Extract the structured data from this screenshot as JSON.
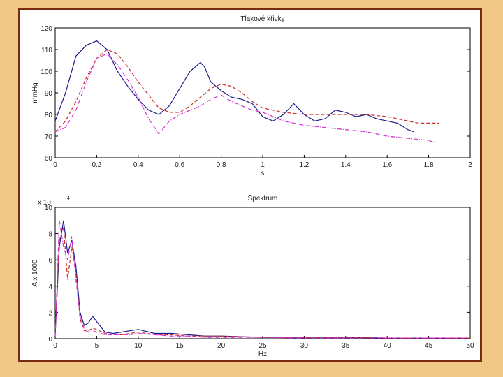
{
  "colors": {
    "frame": "#7a2a10",
    "background": "#f0c987",
    "blue": "#1a1a8c",
    "red": "#cc2a2a",
    "magenta": "#d42ad4"
  },
  "chart_data": [
    {
      "type": "line",
      "title": "Tlakové křivky",
      "xlabel": "s",
      "ylabel": "mmHg",
      "xlim": [
        0,
        2
      ],
      "ylim": [
        60,
        120
      ],
      "xticks": [
        0,
        0.2,
        0.4,
        0.6,
        0.8,
        1,
        1.2,
        1.4,
        1.6,
        1.8,
        2
      ],
      "xtick_labels": [
        "0",
        "0.2",
        "0.4",
        "0.6",
        "0.8",
        "1",
        "1.2",
        "1.4",
        "1.6",
        "1.8",
        "2"
      ],
      "yticks": [
        60,
        70,
        80,
        90,
        100,
        110,
        120
      ],
      "ytick_labels": [
        "60",
        "70",
        "80",
        "90",
        "100",
        "110",
        "120"
      ],
      "series": [
        {
          "name": "blue",
          "color": "#1a1a8c",
          "x": [
            0,
            0.05,
            0.1,
            0.15,
            0.2,
            0.25,
            0.3,
            0.35,
            0.4,
            0.45,
            0.5,
            0.55,
            0.6,
            0.65,
            0.7,
            0.72,
            0.75,
            0.8,
            0.85,
            0.9,
            0.95,
            1,
            1.05,
            1.1,
            1.15,
            1.2,
            1.25,
            1.3,
            1.35,
            1.4,
            1.45,
            1.5,
            1.55,
            1.6,
            1.65,
            1.7,
            1.73
          ],
          "y": [
            77,
            90,
            107,
            112,
            114,
            110,
            100,
            93,
            87,
            82,
            80,
            84,
            92,
            100,
            104,
            102,
            95,
            91,
            88,
            87,
            85,
            79,
            77,
            80,
            85,
            80,
            77,
            78,
            82,
            81,
            79,
            80,
            78,
            77,
            76,
            73,
            72
          ]
        },
        {
          "name": "red",
          "color": "#cc2a2a",
          "x": [
            0,
            0.05,
            0.1,
            0.15,
            0.2,
            0.25,
            0.3,
            0.35,
            0.4,
            0.45,
            0.5,
            0.55,
            0.6,
            0.65,
            0.7,
            0.75,
            0.8,
            0.85,
            0.9,
            0.95,
            1,
            1.1,
            1.2,
            1.3,
            1.4,
            1.5,
            1.6,
            1.7,
            1.75,
            1.8,
            1.85
          ],
          "y": [
            72,
            77,
            86,
            97,
            106,
            110,
            108,
            102,
            95,
            89,
            83,
            81,
            81,
            84,
            88,
            92,
            94,
            93,
            90,
            86,
            83,
            81,
            80,
            80,
            80,
            80,
            79,
            77,
            76,
            76,
            76
          ]
        },
        {
          "name": "magenta",
          "color": "#d42ad4",
          "x": [
            0,
            0.05,
            0.1,
            0.15,
            0.2,
            0.25,
            0.3,
            0.35,
            0.4,
            0.45,
            0.5,
            0.55,
            0.6,
            0.65,
            0.7,
            0.75,
            0.8,
            0.85,
            0.9,
            0.95,
            1,
            1.05,
            1.1,
            1.15,
            1.2,
            1.3,
            1.4,
            1.5,
            1.6,
            1.7,
            1.8,
            1.83
          ],
          "y": [
            72,
            74,
            82,
            95,
            106,
            108,
            103,
            96,
            88,
            78,
            71,
            77,
            80,
            82,
            84,
            87,
            89,
            86,
            84,
            82,
            81,
            79,
            77,
            76,
            75,
            74,
            73,
            72,
            70,
            69,
            68,
            67
          ]
        }
      ]
    },
    {
      "type": "line",
      "title": "Spektrum",
      "xlabel": "Hz",
      "ylabel": "A x 1000",
      "multiplier": "x 10",
      "exponent": "4",
      "xlim": [
        0,
        50
      ],
      "ylim": [
        0,
        10
      ],
      "xticks": [
        0,
        5,
        10,
        15,
        20,
        25,
        30,
        35,
        40,
        45,
        50
      ],
      "xtick_labels": [
        "0",
        "5",
        "10",
        "15",
        "20",
        "25",
        "30",
        "35",
        "40",
        "45",
        "50"
      ],
      "yticks": [
        0,
        2,
        4,
        6,
        8,
        10
      ],
      "ytick_labels": [
        "0",
        "2",
        "4",
        "6",
        "8",
        "10"
      ],
      "series": [
        {
          "name": "blue",
          "color": "#1a1a8c",
          "x": [
            0,
            0.5,
            1,
            1.5,
            2,
            2.5,
            3,
            3.5,
            4,
            4.5,
            5,
            6,
            7,
            8,
            9,
            10,
            12,
            14,
            16,
            18,
            20,
            25,
            30,
            35,
            40,
            45,
            50
          ],
          "y": [
            0.3,
            7,
            9,
            6.5,
            7.5,
            5.5,
            2,
            1,
            1.2,
            1.7,
            1.3,
            0.5,
            0.4,
            0.5,
            0.6,
            0.7,
            0.4,
            0.4,
            0.3,
            0.2,
            0.2,
            0.1,
            0.1,
            0.1,
            0.05,
            0.05,
            0.05
          ]
        },
        {
          "name": "red",
          "color": "#cc2a2a",
          "x": [
            0,
            0.5,
            1,
            1.5,
            2,
            2.5,
            3,
            3.5,
            4,
            4.5,
            5,
            6,
            7,
            8,
            9,
            10,
            12,
            14,
            16,
            18,
            20,
            25,
            30,
            35,
            40,
            45,
            50
          ],
          "y": [
            0.2,
            7.5,
            8.5,
            4.5,
            7,
            5,
            1.5,
            0.6,
            0.6,
            0.8,
            0.7,
            0.4,
            0.3,
            0.3,
            0.4,
            0.5,
            0.3,
            0.3,
            0.2,
            0.2,
            0.2,
            0.1,
            0.1,
            0.1,
            0.05,
            0.05,
            0.05
          ]
        },
        {
          "name": "magenta",
          "color": "#d42ad4",
          "x": [
            0,
            0.5,
            1,
            1.5,
            2,
            2.5,
            3,
            3.5,
            4,
            4.5,
            5,
            6,
            7,
            8,
            9,
            10,
            12,
            14,
            16,
            18,
            20,
            25,
            30,
            35,
            40,
            45,
            50
          ],
          "y": [
            0.2,
            9,
            7,
            6,
            7.8,
            4.5,
            1.8,
            0.7,
            0.5,
            0.6,
            0.5,
            0.3,
            0.3,
            0.3,
            0.3,
            0.4,
            0.3,
            0.2,
            0.2,
            0.1,
            0.1,
            0.1,
            0.05,
            0.05,
            0.05,
            0.05,
            0.05
          ]
        }
      ]
    }
  ]
}
